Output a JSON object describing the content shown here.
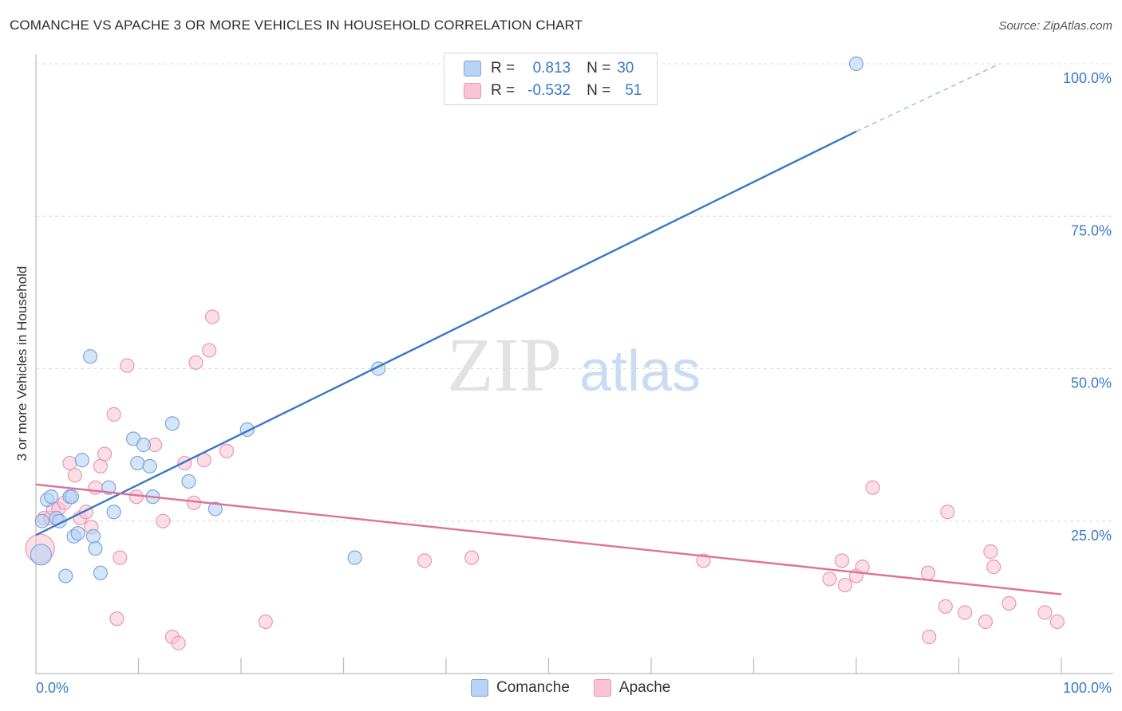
{
  "title": "COMANCHE VS APACHE 3 OR MORE VEHICLES IN HOUSEHOLD CORRELATION CHART",
  "source": "Source: ZipAtlas.com",
  "watermark": {
    "zip": "ZIP",
    "atlas": "atlas"
  },
  "legend": {
    "comanche": {
      "r_label": "R =",
      "r_value": "0.813",
      "n_label": "N =",
      "n_value": "30"
    },
    "apache": {
      "r_label": "R =",
      "r_value": "-0.532",
      "n_label": "N =",
      "n_value": "51"
    }
  },
  "bottom_legend": {
    "comanche": "Comanche",
    "apache": "Apache"
  },
  "colors": {
    "comanche_fill": "#b8d3f3",
    "comanche_stroke": "#7aa7de",
    "comanche_line": "#3a78c8",
    "apache_fill": "#f8c4d3",
    "apache_stroke": "#eb97b2",
    "apache_line": "#e0709a",
    "tick_label": "#3a78c8",
    "grid": "#dcdcdc"
  },
  "chart_data": {
    "type": "scatter",
    "title": "COMANCHE VS APACHE 3 OR MORE VEHICLES IN HOUSEHOLD CORRELATION CHART",
    "xlabel": "",
    "ylabel": "3 or more Vehicles in Household",
    "xlim": [
      0,
      100
    ],
    "ylim": [
      0,
      100
    ],
    "x_tick_labels": [
      "0.0%",
      "100.0%"
    ],
    "y_ticks": [
      25,
      50,
      75,
      100
    ],
    "y_tick_labels": [
      "25.0%",
      "50.0%",
      "75.0%",
      "100.0%"
    ],
    "grid": true,
    "legend_position": "top-center",
    "series": [
      {
        "name": "Comanche",
        "points": [
          [
            0.5,
            19.5
          ],
          [
            0.6,
            25.0
          ],
          [
            1.1,
            28.5
          ],
          [
            1.5,
            29.0
          ],
          [
            2.0,
            25.5
          ],
          [
            2.3,
            25.0
          ],
          [
            2.9,
            16.0
          ],
          [
            3.3,
            29.0
          ],
          [
            3.5,
            29.0
          ],
          [
            3.7,
            22.5
          ],
          [
            4.1,
            23.0
          ],
          [
            4.5,
            35.0
          ],
          [
            5.3,
            52.0
          ],
          [
            5.6,
            22.5
          ],
          [
            5.8,
            20.5
          ],
          [
            6.3,
            16.5
          ],
          [
            7.1,
            30.5
          ],
          [
            7.6,
            26.5
          ],
          [
            9.5,
            38.5
          ],
          [
            9.9,
            34.5
          ],
          [
            10.5,
            37.5
          ],
          [
            11.1,
            34.0
          ],
          [
            11.4,
            29.0
          ],
          [
            13.3,
            41.0
          ],
          [
            14.9,
            31.5
          ],
          [
            17.5,
            27.0
          ],
          [
            20.6,
            40.0
          ],
          [
            31.1,
            19.0
          ],
          [
            33.4,
            50.0
          ],
          [
            80.0,
            100.0
          ]
        ],
        "trend": {
          "x0": 0,
          "y0": 22.7,
          "x1": 80,
          "y1": 88.9,
          "dash_x1": 94,
          "dash_y1": 100
        }
      },
      {
        "name": "Apache",
        "points": [
          [
            0.4,
            20.5
          ],
          [
            0.8,
            25.5
          ],
          [
            1.4,
            25.5
          ],
          [
            1.7,
            27.0
          ],
          [
            2.2,
            27.0
          ],
          [
            2.8,
            28.0
          ],
          [
            3.3,
            34.5
          ],
          [
            3.8,
            32.5
          ],
          [
            4.3,
            25.5
          ],
          [
            4.9,
            26.5
          ],
          [
            5.4,
            24.0
          ],
          [
            5.8,
            30.5
          ],
          [
            6.3,
            34.0
          ],
          [
            6.7,
            36.0
          ],
          [
            7.6,
            42.5
          ],
          [
            7.9,
            9.0
          ],
          [
            8.2,
            19.0
          ],
          [
            8.9,
            50.5
          ],
          [
            9.8,
            29.0
          ],
          [
            11.6,
            37.5
          ],
          [
            12.4,
            25.0
          ],
          [
            13.3,
            6.0
          ],
          [
            13.9,
            5.0
          ],
          [
            14.5,
            34.5
          ],
          [
            15.4,
            28.0
          ],
          [
            15.6,
            51.0
          ],
          [
            16.4,
            35.0
          ],
          [
            16.9,
            53.0
          ],
          [
            17.2,
            58.5
          ],
          [
            18.6,
            36.5
          ],
          [
            22.4,
            8.5
          ],
          [
            37.9,
            18.5
          ],
          [
            42.5,
            19.0
          ],
          [
            65.1,
            18.5
          ],
          [
            77.4,
            15.5
          ],
          [
            78.6,
            18.5
          ],
          [
            78.9,
            14.5
          ],
          [
            80.0,
            16.0
          ],
          [
            80.6,
            17.5
          ],
          [
            81.6,
            30.5
          ],
          [
            87.0,
            16.5
          ],
          [
            87.1,
            6.0
          ],
          [
            88.7,
            11.0
          ],
          [
            88.9,
            26.5
          ],
          [
            90.6,
            10.0
          ],
          [
            92.6,
            8.5
          ],
          [
            93.1,
            20.0
          ],
          [
            93.4,
            17.5
          ],
          [
            94.9,
            11.5
          ],
          [
            98.4,
            10.0
          ],
          [
            99.6,
            8.5
          ]
        ],
        "trend": {
          "x0": 0,
          "y0": 31.0,
          "x1": 100,
          "y1": 13.0
        }
      }
    ]
  }
}
